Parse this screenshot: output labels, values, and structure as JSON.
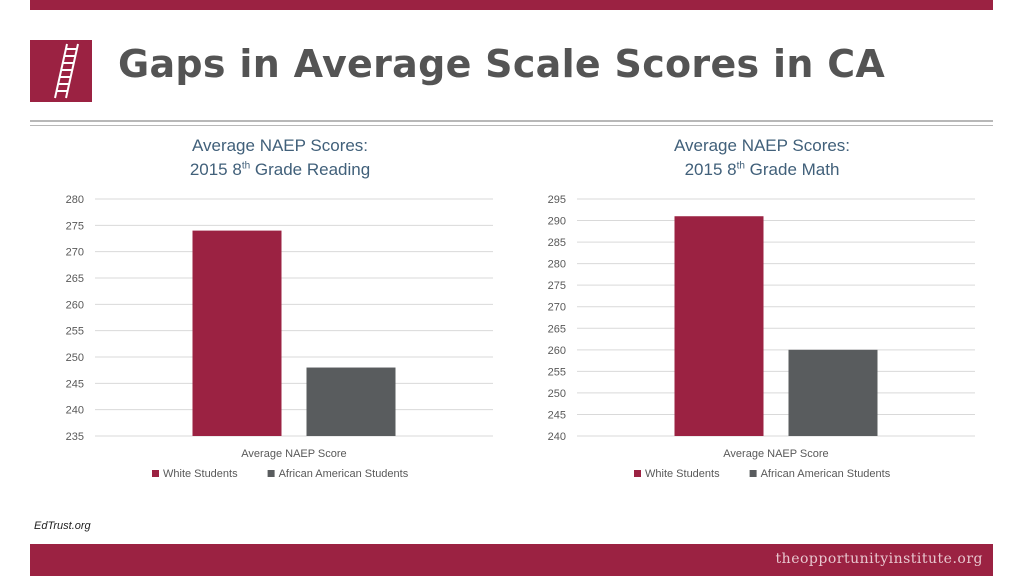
{
  "slide": {
    "title": "Gaps in Average Scale Scores in CA",
    "source": "EdTrust.org",
    "footer_brand": "theopportunityinstitute.org"
  },
  "colors": {
    "brand": "#9b2242",
    "white_students": "#9b2242",
    "african_american_students": "#595c5e",
    "title_text": "#545454",
    "chart_title_text": "#41607a"
  },
  "icons": {
    "logo": "ladder-icon"
  },
  "chart_data": [
    {
      "type": "bar",
      "title_line1": "Average NAEP Scores:",
      "title_line2_pre": "2015 8",
      "title_line2_sup": "th",
      "title_line2_post": " Grade Reading",
      "categories": [
        "Average NAEP Score"
      ],
      "series": [
        {
          "name": "White Students",
          "values": [
            274
          ]
        },
        {
          "name": "African American Students",
          "values": [
            248
          ]
        }
      ],
      "ylim": [
        235,
        280
      ],
      "yticks": [
        235,
        240,
        245,
        250,
        255,
        260,
        265,
        270,
        275,
        280
      ],
      "grid": true,
      "legend": "bottom"
    },
    {
      "type": "bar",
      "title_line1": "Average NAEP Scores:",
      "title_line2_pre": "2015 8",
      "title_line2_sup": "th",
      "title_line2_post": " Grade Math",
      "categories": [
        "Average NAEP Score"
      ],
      "series": [
        {
          "name": "White Students",
          "values": [
            291
          ]
        },
        {
          "name": "African American Students",
          "values": [
            260
          ]
        }
      ],
      "ylim": [
        240,
        295
      ],
      "yticks": [
        240,
        245,
        250,
        255,
        260,
        265,
        270,
        275,
        280,
        285,
        290,
        295
      ],
      "grid": true,
      "legend": "bottom"
    }
  ]
}
